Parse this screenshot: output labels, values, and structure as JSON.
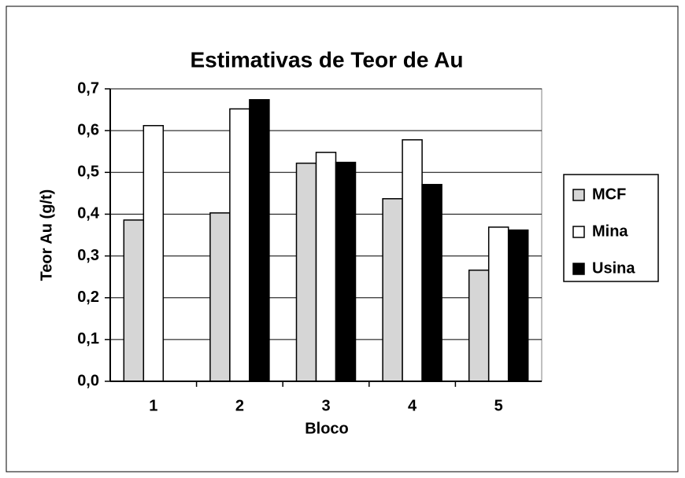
{
  "chart_data": {
    "type": "bar",
    "title": "Estimativas de Teor de Au",
    "xlabel": "Bloco",
    "ylabel": "Teor Au (g/t)",
    "categories": [
      "1",
      "2",
      "3",
      "4",
      "5"
    ],
    "series": [
      {
        "name": "MCF",
        "color": "#d6d6d6",
        "values": [
          0.386,
          0.403,
          0.522,
          0.437,
          0.266
        ]
      },
      {
        "name": "Mina",
        "color": "#ffffff",
        "values": [
          0.612,
          0.652,
          0.548,
          0.578,
          0.369
        ]
      },
      {
        "name": "Usina",
        "color": "#000000",
        "values": [
          null,
          0.674,
          0.524,
          0.471,
          0.362
        ]
      }
    ],
    "ylim": [
      0,
      0.7
    ],
    "yticks": [
      {
        "value": 0,
        "label": "0,0"
      },
      {
        "value": 0.1,
        "label": "0,1"
      },
      {
        "value": 0.2,
        "label": "0,2"
      },
      {
        "value": 0.3,
        "label": "0,3"
      },
      {
        "value": 0.4,
        "label": "0,4"
      },
      {
        "value": 0.5,
        "label": "0,5"
      },
      {
        "value": 0.6,
        "label": "0,6"
      },
      {
        "value": 0.7,
        "label": "0,7"
      }
    ],
    "grid": true,
    "legend": "right"
  }
}
